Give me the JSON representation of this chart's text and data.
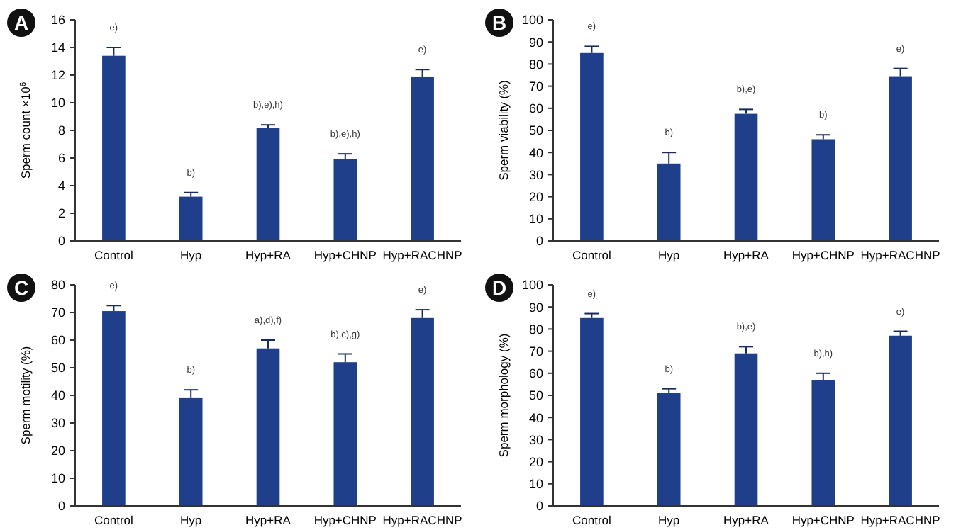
{
  "chart_data": [
    {
      "type": "bar",
      "title": "A",
      "ylabel": "Sperm count ×10$^{6}$",
      "categories": [
        "Control",
        "Hyp",
        "Hyp+RA",
        "Hyp+CHNP",
        "Hyp+RACHNP"
      ],
      "values": [
        13.4,
        3.2,
        8.2,
        5.9,
        11.9
      ],
      "errors": [
        [
          13.4,
          14.0
        ],
        [
          3.2,
          3.5
        ],
        [
          8.2,
          8.4
        ],
        [
          5.9,
          6.3
        ],
        [
          11.9,
          12.4
        ]
      ],
      "color": "#1f3f8a",
      "ylim": [
        0,
        16
      ],
      "yticks": [
        0,
        2,
        4,
        6,
        8,
        10,
        12,
        14,
        16
      ],
      "value_labels": [
        "e)",
        "b)",
        "b),e),h)",
        "b),e),h)",
        "e)"
      ]
    },
    {
      "type": "bar",
      "title": "B",
      "ylabel": "Sperm viability (%)",
      "categories": [
        "Control",
        "Hyp",
        "Hyp+RA",
        "Hyp+CHNP",
        "Hyp+RACHNP"
      ],
      "values": [
        85,
        35,
        57.5,
        46,
        74.5
      ],
      "errors": [
        [
          85,
          88
        ],
        [
          35,
          40
        ],
        [
          57.5,
          59.5
        ],
        [
          46,
          48
        ],
        [
          74.5,
          78
        ]
      ],
      "color": "#1f3f8a",
      "ylim": [
        0,
        100
      ],
      "yticks": [
        0,
        10,
        20,
        30,
        40,
        50,
        60,
        70,
        80,
        90,
        100
      ],
      "value_labels": [
        "e)",
        "b)",
        "b),e)",
        "b)",
        "e)"
      ]
    },
    {
      "type": "bar",
      "title": "C",
      "ylabel": "Sperm motility (%)",
      "categories": [
        "Control",
        "Hyp",
        "Hyp+RA",
        "Hyp+CHNP",
        "Hyp+RACHNP"
      ],
      "values": [
        70.5,
        39,
        57,
        52,
        68
      ],
      "errors": [
        [
          70.5,
          72.5
        ],
        [
          39,
          42
        ],
        [
          57,
          60
        ],
        [
          52,
          55
        ],
        [
          68,
          71
        ]
      ],
      "color": "#1f3f8a",
      "ylim": [
        0,
        80
      ],
      "yticks": [
        0,
        10,
        20,
        30,
        40,
        50,
        60,
        70,
        80
      ],
      "value_labels": [
        "e)",
        "b)",
        "a),d),f)",
        "b),c),g)",
        "e)"
      ]
    },
    {
      "type": "bar",
      "title": "D",
      "ylabel": "Sperm morphology (%)",
      "categories": [
        "Control",
        "Hyp",
        "Hyp+RA",
        "Hyp+CHNP",
        "Hyp+RACHNP"
      ],
      "values": [
        85,
        51,
        69,
        57,
        77
      ],
      "errors": [
        [
          85,
          87
        ],
        [
          51,
          53
        ],
        [
          69,
          72
        ],
        [
          57,
          60
        ],
        [
          77,
          79
        ]
      ],
      "color": "#1f3f8a",
      "ylim": [
        0,
        100
      ],
      "yticks": [
        0,
        10,
        20,
        30,
        40,
        50,
        60,
        70,
        80,
        90,
        100
      ],
      "value_labels": [
        "e)",
        "b)",
        "b),e)",
        "b),h)",
        "e)"
      ]
    }
  ]
}
